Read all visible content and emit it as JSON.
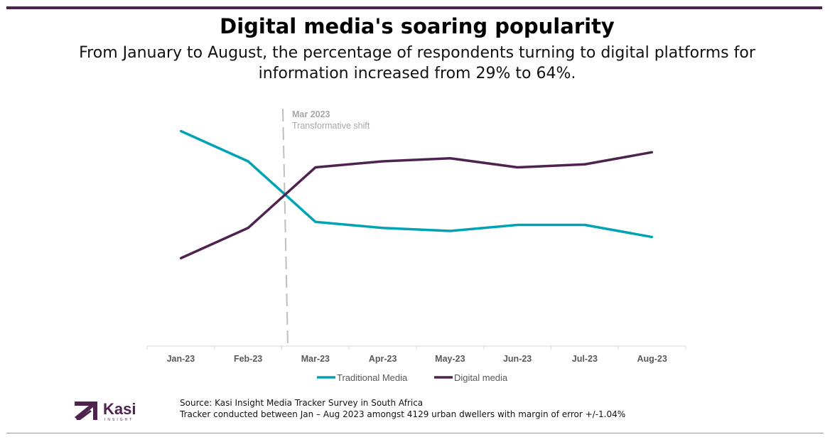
{
  "header": {
    "title": "Digital media's soaring popularity",
    "subtitle": "From January to August, the percentage of respondents turning to digital platforms for information increased from 29% to 64%."
  },
  "chart_data": {
    "type": "line",
    "categories": [
      "Jan-23",
      "Feb-23",
      "Mar-23",
      "Apr-23",
      "May-23",
      "Jun-23",
      "Jul-23",
      "Aug-23"
    ],
    "series": [
      {
        "name": "Traditional Media",
        "color": "#00a3b4",
        "values": [
          71,
          61,
          41,
          39,
          38,
          40,
          40,
          36
        ]
      },
      {
        "name": "Digital media",
        "color": "#4e2350",
        "values": [
          29,
          39,
          59,
          61,
          62,
          59,
          60,
          64
        ]
      }
    ],
    "ylim": [
      0,
      80
    ],
    "grid": false,
    "legend": "bottom",
    "annotation": {
      "x": "Mar-23",
      "title": "Mar 2023",
      "text": "Transformative shift"
    }
  },
  "footer": {
    "source": "Source: Kasi Insight Media Tracker Survey in South Africa",
    "note": "Tracker conducted  between Jan – Aug 2023 amongst 4129 urban dwellers with margin of error +/-1.04%",
    "logo_text": "Kasi",
    "logo_sub": "INSIGHT"
  }
}
